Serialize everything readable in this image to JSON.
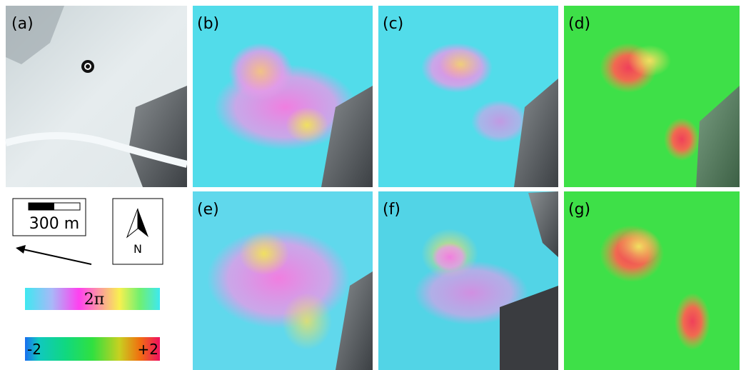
{
  "panels": [
    {
      "label": "(a)"
    },
    {
      "label": "(b)"
    },
    {
      "label": "(c)"
    },
    {
      "label": "(d)"
    },
    {
      "label": "(e)"
    },
    {
      "label": "(f)"
    },
    {
      "label": "(g)"
    }
  ],
  "scale_bar": {
    "label": "300 m"
  },
  "north_arrow": {
    "label": "N"
  },
  "phase_bar": {
    "label": "2π"
  },
  "deformation_bar": {
    "min_label": "-2",
    "max_label": "+2"
  }
}
